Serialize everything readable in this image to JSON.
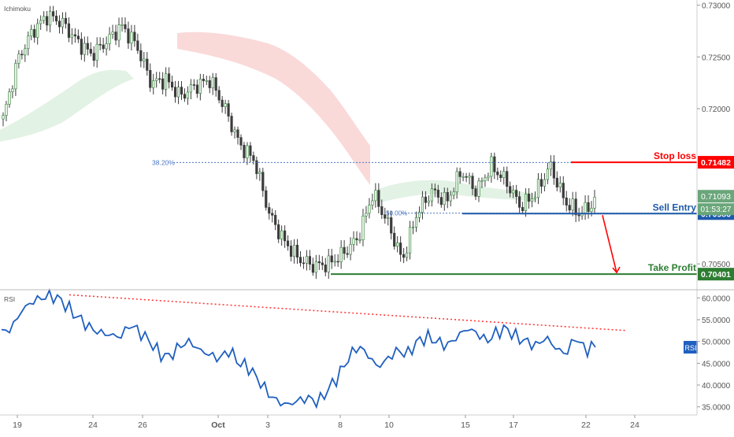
{
  "indicator_label": "Ichimoku",
  "rsi_pane_label": "RSI",
  "colors": {
    "up": "#26a69a",
    "down": "#ef5350",
    "candle": "#3c3c3c",
    "stop": "#ff0000",
    "entry": "#1e5aa8",
    "tp": "#2e7d32",
    "rsi_line": "#1f5fbf",
    "trendline": "#ff3b3b",
    "fib": "#4a76c4",
    "cloud_red": "#f8c9c9",
    "cloud_green": "#cfead2"
  },
  "chart_data": [
    {
      "type": "candlestick",
      "title": "",
      "indicator": "Ichimoku",
      "ylim": [
        0.7025,
        0.7305
      ],
      "y_ticks": [
        "0.73000",
        "0.72500",
        "0.72000",
        "0.70500"
      ],
      "x_ticks": [
        "19",
        "24",
        "26",
        "Oct",
        "3",
        "8",
        "10",
        "15",
        "17",
        "22",
        "24"
      ],
      "close_path": [
        0.719,
        0.7248,
        0.7275,
        0.729,
        0.7283,
        0.7265,
        0.7252,
        0.7265,
        0.728,
        0.7262,
        0.7225,
        0.7228,
        0.7212,
        0.7222,
        0.7228,
        0.72,
        0.7165,
        0.715,
        0.7098,
        0.7072,
        0.7055,
        0.7048,
        0.705,
        0.706,
        0.7075,
        0.7118,
        0.709,
        0.7053,
        0.71,
        0.712,
        0.711,
        0.714,
        0.712,
        0.7145,
        0.713,
        0.7105,
        0.7118,
        0.7145,
        0.711,
        0.7098,
        0.711
      ],
      "fib_level": {
        "label": "38.20%",
        "value": 0.7148
      },
      "fib_level_2": {
        "label": "50.00%",
        "value": 0.7099
      },
      "levels": [
        {
          "name": "Stop loss",
          "value": 0.71482,
          "price_tag": "0.71482"
        },
        {
          "name": "Sell Entry",
          "value": 0.70986,
          "price_tag": "0.70986"
        },
        {
          "name": "Take Profit",
          "value": 0.70401,
          "price_tag": "0.70401"
        }
      ],
      "last_price": {
        "value": 0.71093,
        "tag": "0.71093",
        "countdown": "01:53:27"
      }
    },
    {
      "type": "line",
      "title": "RSI",
      "ylim": [
        33.5,
        61.5
      ],
      "y_ticks": [
        "60.0000",
        "55.0000",
        "50.0000",
        "45.0000",
        "40.0000",
        "35.0000"
      ],
      "series": [
        {
          "name": "RSI",
          "values": [
            52,
            53,
            57,
            59,
            60,
            60.5,
            59.5,
            57,
            55,
            53,
            52,
            51.5,
            51,
            54,
            52,
            50,
            47,
            46.5,
            49,
            50,
            48,
            47,
            46,
            48,
            45,
            44,
            41,
            38,
            36,
            35.5,
            36.5,
            37,
            36,
            39,
            42,
            46,
            49,
            47,
            44,
            46,
            48,
            47,
            50,
            51,
            50,
            49,
            51,
            53,
            52,
            50,
            52,
            53,
            51,
            50,
            49,
            51,
            48.5,
            47,
            51,
            48,
            49
          ]
        }
      ],
      "trendline": {
        "from": 60.7,
        "to": 52.5
      },
      "badge": "RSI"
    }
  ]
}
